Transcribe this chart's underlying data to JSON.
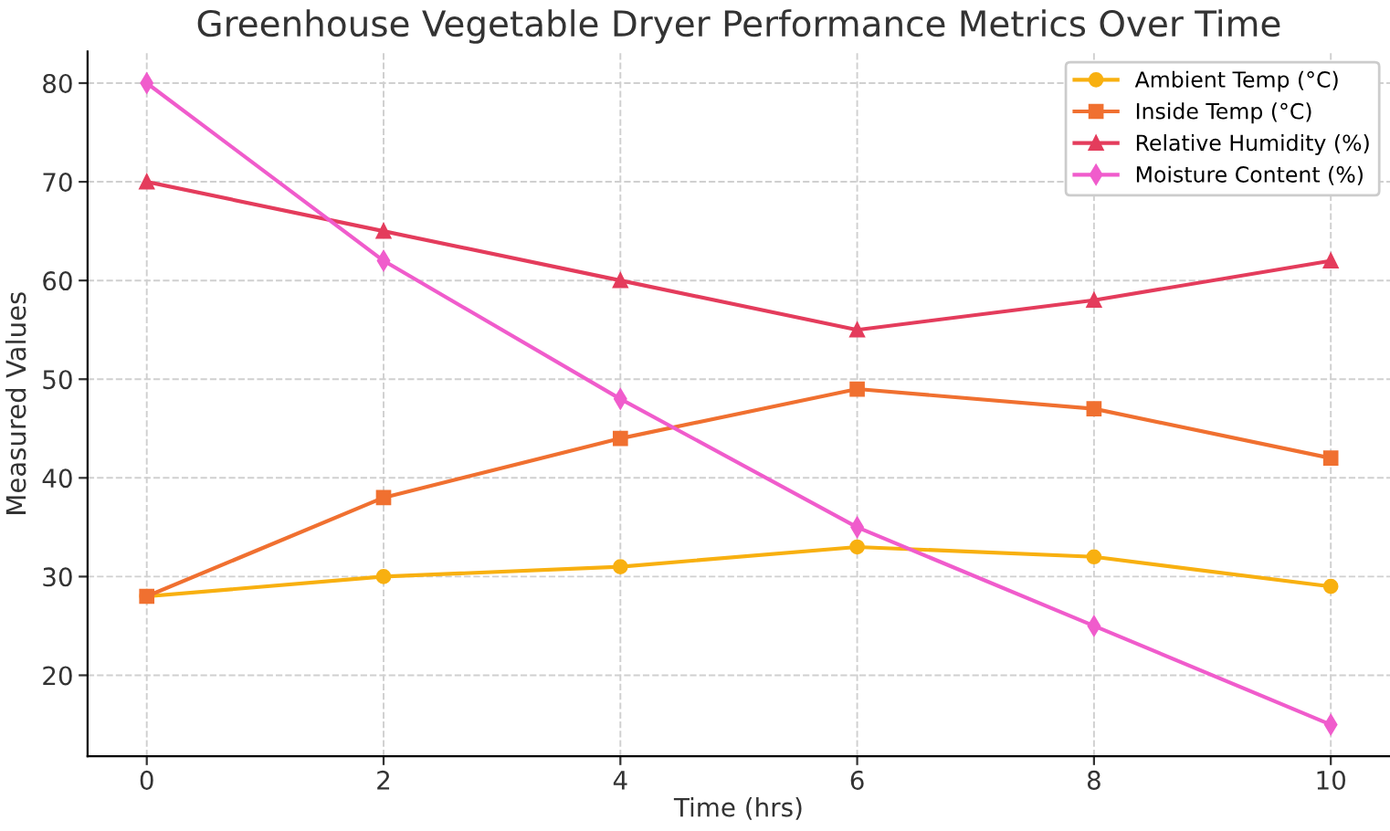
{
  "chart_data": {
    "type": "line",
    "title": "Greenhouse Vegetable Dryer Performance Metrics Over Time",
    "xlabel": "Time (hrs)",
    "ylabel": "Measured Values",
    "x": [
      0,
      2,
      4,
      6,
      8,
      10
    ],
    "series": [
      {
        "name": "Ambient Temp (°C)",
        "color": "#f8b010",
        "marker": "circle",
        "values": [
          28,
          30,
          31,
          33,
          32,
          29
        ]
      },
      {
        "name": "Inside Temp (°C)",
        "color": "#f07030",
        "marker": "square",
        "values": [
          28,
          38,
          44,
          49,
          47,
          42
        ]
      },
      {
        "name": "Relative Humidity (%)",
        "color": "#e43c5c",
        "marker": "triangle",
        "values": [
          70,
          65,
          60,
          55,
          58,
          62
        ]
      },
      {
        "name": "Moisture Content (%)",
        "color": "#f05ccc",
        "marker": "diamond",
        "values": [
          80,
          62,
          48,
          35,
          25,
          15
        ]
      }
    ],
    "xlim": [
      -0.5,
      10.5
    ],
    "ylim": [
      11.8,
      83.2
    ],
    "xticks": [
      0,
      2,
      4,
      6,
      8,
      10
    ],
    "yticks": [
      20,
      30,
      40,
      50,
      60,
      70,
      80
    ],
    "grid": true,
    "legend": "top right",
    "line_style": "solid"
  }
}
